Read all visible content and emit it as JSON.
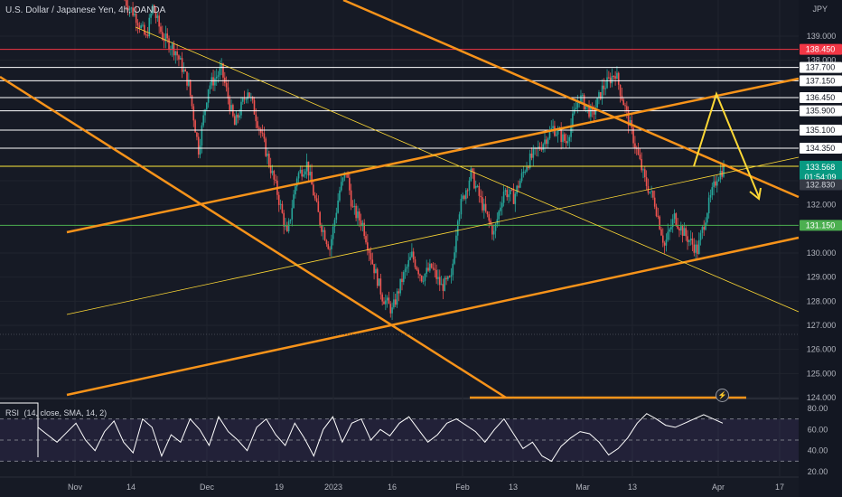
{
  "header": {
    "symbol": "U.S. Dollar / Japanese Yen, 4h, OANDA",
    "unit": "JPY"
  },
  "rsi": {
    "label": "RSI",
    "params": [
      "14",
      "close",
      "SMA",
      "14",
      "2"
    ],
    "levels": [
      70,
      50,
      30
    ],
    "axis_ticks": [
      "80.00",
      "60.00",
      "40.00",
      "20.00"
    ]
  },
  "chart_data": {
    "type": "candlestick",
    "title": "U.S. Dollar / Japanese Yen, 4h, OANDA",
    "ylabel": "JPY",
    "ylim": [
      124.0,
      140.5
    ],
    "y_ticks": [
      "139.000",
      "138.000",
      "133.000",
      "132.000",
      "130.000",
      "129.000",
      "128.000",
      "127.000",
      "126.000",
      "125.000",
      "124.000"
    ],
    "x_ticks": [
      "Nov",
      "14",
      "Dec",
      "19",
      "2023",
      "16",
      "Feb",
      "13",
      "Mar",
      "13",
      "Apr",
      "17"
    ],
    "current_price": "133.568",
    "countdown": "01:54:09",
    "horizontal_levels": [
      {
        "value": 138.45,
        "label": "138.450",
        "color": "#f23645"
      },
      {
        "value": 137.7,
        "label": "137.700",
        "color": "#ffffff"
      },
      {
        "value": 137.15,
        "label": "137.150",
        "color": "#ffffff"
      },
      {
        "value": 136.45,
        "label": "136.450",
        "color": "#ffffff"
      },
      {
        "value": 135.9,
        "label": "135.900",
        "color": "#ffffff"
      },
      {
        "value": 135.1,
        "label": "135.100",
        "color": "#ffffff"
      },
      {
        "value": 134.35,
        "label": "134.350",
        "color": "#ffffff"
      },
      {
        "value": 133.6,
        "label": "133.600",
        "color": "#ffeb3b"
      },
      {
        "value": 131.15,
        "label": "131.150",
        "color": "#4caf50"
      }
    ],
    "extra_labels": [
      {
        "value": 132.83,
        "label": "132.830",
        "color": "#363a45"
      }
    ],
    "candle_path": [
      [
        0,
        140.6
      ],
      [
        8,
        139.8
      ],
      [
        14,
        138.9
      ],
      [
        18,
        140.2
      ],
      [
        24,
        139.0
      ],
      [
        32,
        138.4
      ],
      [
        40,
        137.0
      ],
      [
        46,
        134.3
      ],
      [
        52,
        136.9
      ],
      [
        60,
        137.6
      ],
      [
        68,
        135.3
      ],
      [
        76,
        136.8
      ],
      [
        84,
        135.0
      ],
      [
        94,
        132.5
      ],
      [
        100,
        130.7
      ],
      [
        106,
        133.2
      ],
      [
        112,
        133.7
      ],
      [
        120,
        131.3
      ],
      [
        126,
        130.2
      ],
      [
        132,
        132.6
      ],
      [
        136,
        133.4
      ],
      [
        140,
        131.8
      ],
      [
        146,
        131.2
      ],
      [
        152,
        129.6
      ],
      [
        158,
        128.2
      ],
      [
        164,
        127.6
      ],
      [
        170,
        128.9
      ],
      [
        176,
        129.9
      ],
      [
        182,
        129.0
      ],
      [
        188,
        129.4
      ],
      [
        194,
        128.6
      ],
      [
        200,
        128.9
      ],
      [
        204,
        131.6
      ],
      [
        212,
        133.3
      ],
      [
        220,
        131.8
      ],
      [
        226,
        130.8
      ],
      [
        232,
        132.6
      ],
      [
        238,
        132.3
      ],
      [
        246,
        133.7
      ],
      [
        254,
        134.4
      ],
      [
        262,
        135.2
      ],
      [
        270,
        134.6
      ],
      [
        278,
        136.5
      ],
      [
        286,
        135.7
      ],
      [
        292,
        136.8
      ],
      [
        300,
        137.5
      ],
      [
        306,
        136.0
      ],
      [
        312,
        134.5
      ],
      [
        318,
        133.0
      ],
      [
        324,
        132.1
      ],
      [
        330,
        130.3
      ],
      [
        336,
        131.5
      ],
      [
        342,
        130.8
      ],
      [
        350,
        130.1
      ],
      [
        356,
        131.8
      ],
      [
        362,
        133.2
      ],
      [
        366,
        133.5
      ]
    ],
    "rsi_values": [
      62,
      55,
      48,
      57,
      66,
      50,
      40,
      58,
      68,
      48,
      38,
      70,
      62,
      35,
      55,
      48,
      70,
      60,
      45,
      72,
      58,
      50,
      40,
      62,
      70,
      55,
      45,
      66,
      52,
      35,
      60,
      72,
      48,
      66,
      70,
      50,
      60,
      54,
      66,
      72,
      60,
      48,
      55,
      66,
      70,
      64,
      58,
      48,
      60,
      70,
      56,
      42,
      48,
      35,
      30,
      44,
      52,
      58,
      56,
      48,
      36,
      42,
      52,
      66,
      75,
      70,
      64,
      62,
      66,
      70,
      74,
      70,
      66
    ]
  }
}
